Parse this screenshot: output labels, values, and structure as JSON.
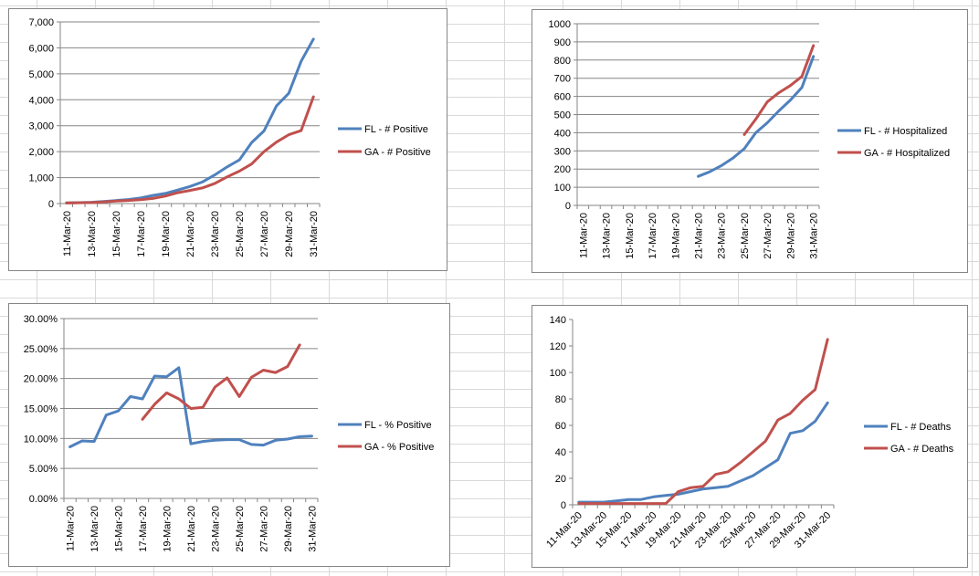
{
  "sheet": {
    "grid_color": "#d9d9d9"
  },
  "colors": {
    "FL": "#4f81bd",
    "GA": "#c0504d",
    "axis": "#868686",
    "gridline": "#868686"
  },
  "chart_data": [
    {
      "type": "line",
      "title": "",
      "x": [
        "11-Mar-20",
        "12-Mar-20",
        "13-Mar-20",
        "14-Mar-20",
        "15-Mar-20",
        "16-Mar-20",
        "17-Mar-20",
        "18-Mar-20",
        "19-Mar-20",
        "20-Mar-20",
        "21-Mar-20",
        "22-Mar-20",
        "23-Mar-20",
        "24-Mar-20",
        "25-Mar-20",
        "26-Mar-20",
        "27-Mar-20",
        "28-Mar-20",
        "29-Mar-20",
        "30-Mar-20",
        "31-Mar-20"
      ],
      "tick_labels": [
        "11-Mar-20",
        "13-Mar-20",
        "15-Mar-20",
        "17-Mar-20",
        "19-Mar-20",
        "21-Mar-20",
        "23-Mar-20",
        "25-Mar-20",
        "27-Mar-20",
        "29-Mar-20",
        "31-Mar-20"
      ],
      "y_tick_labels": [
        "0",
        "1,000",
        "2,000",
        "3,000",
        "4,000",
        "5,000",
        "6,000",
        "7,000"
      ],
      "ylim": [
        0,
        7000
      ],
      "grid": true,
      "legend_position": "right",
      "series": [
        {
          "name": "FL - # Positive",
          "color": "#4f81bd",
          "values": [
            28,
            35,
            50,
            77,
            115,
            155,
            216,
            314,
            390,
            520,
            658,
            830,
            1100,
            1410,
            1680,
            2355,
            2800,
            3760,
            4250,
            5480,
            6340
          ]
        },
        {
          "name": "GA - # Positive",
          "color": "#c0504d",
          "values": [
            22,
            30,
            40,
            64,
            99,
            121,
            146,
            197,
            287,
            420,
            507,
            600,
            772,
            1026,
            1247,
            1525,
            2000,
            2366,
            2651,
            2809,
            4117
          ]
        }
      ]
    },
    {
      "type": "line",
      "title": "",
      "x": [
        "11-Mar-20",
        "12-Mar-20",
        "13-Mar-20",
        "14-Mar-20",
        "15-Mar-20",
        "16-Mar-20",
        "17-Mar-20",
        "18-Mar-20",
        "19-Mar-20",
        "20-Mar-20",
        "21-Mar-20",
        "22-Mar-20",
        "23-Mar-20",
        "24-Mar-20",
        "25-Mar-20",
        "26-Mar-20",
        "27-Mar-20",
        "28-Mar-20",
        "29-Mar-20",
        "30-Mar-20",
        "31-Mar-20"
      ],
      "tick_labels": [
        "11-Mar-20",
        "13-Mar-20",
        "15-Mar-20",
        "17-Mar-20",
        "19-Mar-20",
        "21-Mar-20",
        "23-Mar-20",
        "25-Mar-20",
        "27-Mar-20",
        "29-Mar-20",
        "31-Mar-20"
      ],
      "y_tick_labels": [
        "0",
        "100",
        "200",
        "300",
        "400",
        "500",
        "600",
        "700",
        "800",
        "900",
        "1000"
      ],
      "ylim": [
        0,
        1000
      ],
      "grid": true,
      "legend_position": "right",
      "series": [
        {
          "name": "FL - # Hospitalized",
          "color": "#4f81bd",
          "values": [
            null,
            null,
            null,
            null,
            null,
            null,
            null,
            null,
            null,
            null,
            160,
            185,
            218,
            260,
            312,
            400,
            455,
            520,
            580,
            650,
            820
          ]
        },
        {
          "name": "GA - # Hospitalized",
          "color": "#c0504d",
          "values": [
            null,
            null,
            null,
            null,
            null,
            null,
            null,
            null,
            null,
            null,
            null,
            null,
            null,
            null,
            390,
            475,
            570,
            620,
            660,
            710,
            880
          ]
        }
      ]
    },
    {
      "type": "line",
      "title": "",
      "x": [
        "11-Mar-20",
        "12-Mar-20",
        "13-Mar-20",
        "14-Mar-20",
        "15-Mar-20",
        "16-Mar-20",
        "17-Mar-20",
        "18-Mar-20",
        "19-Mar-20",
        "20-Mar-20",
        "21-Mar-20",
        "22-Mar-20",
        "23-Mar-20",
        "24-Mar-20",
        "25-Mar-20",
        "26-Mar-20",
        "27-Mar-20",
        "28-Mar-20",
        "29-Mar-20",
        "30-Mar-20",
        "31-Mar-20"
      ],
      "tick_labels": [
        "11-Mar-20",
        "13-Mar-20",
        "15-Mar-20",
        "17-Mar-20",
        "19-Mar-20",
        "21-Mar-20",
        "23-Mar-20",
        "25-Mar-20",
        "27-Mar-20",
        "29-Mar-20",
        "31-Mar-20"
      ],
      "y_tick_labels": [
        "0.00%",
        "5.00%",
        "10.00%",
        "15.00%",
        "20.00%",
        "25.00%",
        "30.00%"
      ],
      "ylim": [
        0,
        30
      ],
      "grid": true,
      "legend_position": "right",
      "series": [
        {
          "name": "FL - % Positive",
          "color": "#4f81bd",
          "values": [
            8.6,
            9.6,
            9.5,
            13.9,
            14.6,
            17.0,
            16.6,
            20.4,
            20.3,
            21.8,
            9.1,
            9.5,
            9.7,
            9.8,
            9.8,
            9.0,
            8.9,
            9.7,
            9.9,
            10.3,
            10.4
          ]
        },
        {
          "name": "GA - % Positive",
          "color": "#c0504d",
          "values": [
            null,
            null,
            null,
            null,
            null,
            null,
            13.2,
            15.7,
            17.6,
            16.6,
            15.0,
            15.2,
            18.6,
            20.1,
            17.0,
            20.2,
            21.4,
            21.0,
            22.0,
            25.6,
            null
          ]
        }
      ]
    },
    {
      "type": "line",
      "title": "",
      "x": [
        "11-Mar-20",
        "12-Mar-20",
        "13-Mar-20",
        "14-Mar-20",
        "15-Mar-20",
        "16-Mar-20",
        "17-Mar-20",
        "18-Mar-20",
        "19-Mar-20",
        "20-Mar-20",
        "21-Mar-20",
        "22-Mar-20",
        "23-Mar-20",
        "24-Mar-20",
        "25-Mar-20",
        "26-Mar-20",
        "27-Mar-20",
        "28-Mar-20",
        "29-Mar-20",
        "30-Mar-20",
        "31-Mar-20"
      ],
      "tick_labels": [
        "11-Mar-20",
        "13-Mar-20",
        "15-Mar-20",
        "17-Mar-20",
        "19-Mar-20",
        "21-Mar-20",
        "23-Mar-20",
        "25-Mar-20",
        "27-Mar-20",
        "29-Mar-20",
        "31-Mar-20"
      ],
      "y_tick_labels": [
        "0",
        "20",
        "40",
        "60",
        "80",
        "100",
        "120",
        "140"
      ],
      "ylim": [
        0,
        140
      ],
      "grid": false,
      "legend_position": "right",
      "series": [
        {
          "name": "FL - # Deaths",
          "color": "#4f81bd",
          "values": [
            2,
            2,
            2,
            3,
            4,
            4,
            6,
            7,
            8,
            10,
            12,
            13,
            14,
            18,
            22,
            28,
            34,
            54,
            56,
            63,
            77
          ]
        },
        {
          "name": "GA - # Deaths",
          "color": "#c0504d",
          "values": [
            1,
            1,
            1,
            1,
            1,
            1,
            1,
            1,
            10,
            13,
            14,
            23,
            25,
            32,
            40,
            48,
            64,
            69,
            79,
            87,
            125
          ]
        }
      ]
    }
  ]
}
